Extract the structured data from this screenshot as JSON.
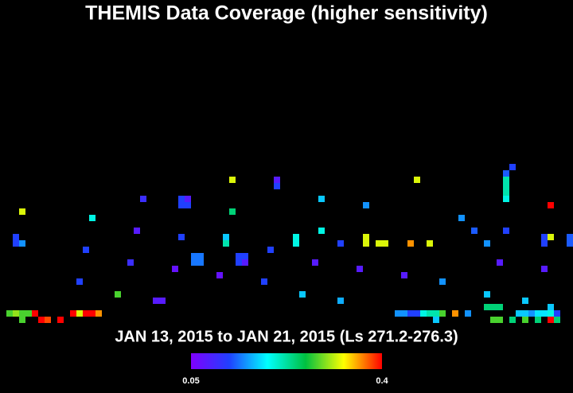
{
  "chart_data": {
    "type": "heatmap",
    "title": "THEMIS Data Coverage (higher sensitivity)",
    "subtitle": "JAN 13, 2015 to JAN 21, 2015 (Ls 271.2-276.3)",
    "clim": [
      0.05,
      0.4
    ],
    "x": [
      36,
      43,
      43,
      65,
      80,
      79,
      79,
      79,
      79,
      79,
      22,
      28,
      29,
      28,
      29,
      50,
      57,
      86,
      3,
      36,
      14,
      72,
      21,
      50,
      74,
      79,
      2,
      2,
      3,
      28,
      35,
      35,
      46,
      46,
      53,
      57,
      57,
      59,
      60,
      64,
      67,
      76,
      85,
      85,
      86,
      89,
      89,
      13,
      42,
      30,
      31,
      30,
      31,
      37,
      38,
      37,
      38,
      20,
      49,
      78,
      27,
      56,
      85,
      34,
      63,
      12,
      41,
      69,
      18,
      47,
      76,
      24,
      25,
      53,
      82,
      76,
      77,
      78,
      86,
      1,
      2,
      3,
      4,
      5,
      11,
      12,
      13,
      14,
      15,
      62,
      63,
      64,
      65,
      66,
      67,
      68,
      69,
      71,
      73,
      81,
      82,
      83,
      84,
      85,
      86,
      87,
      3,
      6,
      7,
      9,
      68,
      77,
      78,
      80,
      82,
      84,
      86,
      87
    ],
    "y": [
      2,
      2,
      3,
      2,
      0,
      1,
      2,
      3,
      4,
      5,
      5,
      5,
      5,
      6,
      6,
      5,
      6,
      6,
      7,
      7,
      8,
      8,
      10,
      10,
      10,
      10,
      11,
      12,
      12,
      11,
      11,
      12,
      11,
      12,
      12,
      11,
      12,
      12,
      12,
      12,
      12,
      12,
      11,
      12,
      11,
      11,
      12,
      13,
      13,
      14,
      14,
      15,
      15,
      14,
      14,
      15,
      15,
      15,
      15,
      15,
      16,
      16,
      16,
      17,
      17,
      18,
      18,
      18,
      20,
      20,
      20,
      21,
      21,
      21,
      21,
      22,
      22,
      22,
      22,
      23,
      23,
      23,
      23,
      23,
      23,
      23,
      23,
      23,
      23,
      23,
      23,
      23,
      23,
      23,
      23,
      23,
      23,
      23,
      23,
      23,
      23,
      23,
      23,
      23,
      23,
      23,
      24,
      24,
      24,
      24,
      24,
      24,
      24,
      24,
      24,
      24,
      24,
      24
    ],
    "values": [
      0.32,
      0.08,
      0.12,
      0.32,
      0.12,
      0.13,
      0.22,
      0.22,
      0.22,
      0.2,
      0.1,
      0.12,
      0.08,
      0.12,
      0.12,
      0.17,
      0.15,
      0.4,
      0.32,
      0.24,
      0.2,
      0.15,
      0.08,
      0.2,
      0.13,
      0.12,
      0.12,
      0.12,
      0.15,
      0.12,
      0.17,
      0.22,
      0.2,
      0.2,
      0.12,
      0.32,
      0.32,
      0.32,
      0.32,
      0.36,
      0.32,
      0.15,
      0.12,
      0.12,
      0.32,
      0.13,
      0.13,
      0.12,
      0.12,
      0.14,
      0.14,
      0.14,
      0.14,
      0.12,
      0.12,
      0.12,
      0.08,
      0.1,
      0.08,
      0.08,
      0.07,
      0.08,
      0.08,
      0.07,
      0.08,
      0.12,
      0.12,
      0.15,
      0.28,
      0.17,
      0.17,
      0.08,
      0.08,
      0.16,
      0.17,
      0.24,
      0.24,
      0.24,
      0.17,
      0.28,
      0.3,
      0.28,
      0.28,
      0.4,
      0.4,
      0.32,
      0.4,
      0.4,
      0.36,
      0.15,
      0.15,
      0.12,
      0.12,
      0.2,
      0.22,
      0.22,
      0.28,
      0.36,
      0.15,
      0.17,
      0.17,
      0.15,
      0.18,
      0.18,
      0.2,
      0.12,
      0.28,
      0.4,
      0.38,
      0.4,
      0.17,
      0.28,
      0.28,
      0.24,
      0.28,
      0.24,
      0.4,
      0.24
    ]
  }
}
